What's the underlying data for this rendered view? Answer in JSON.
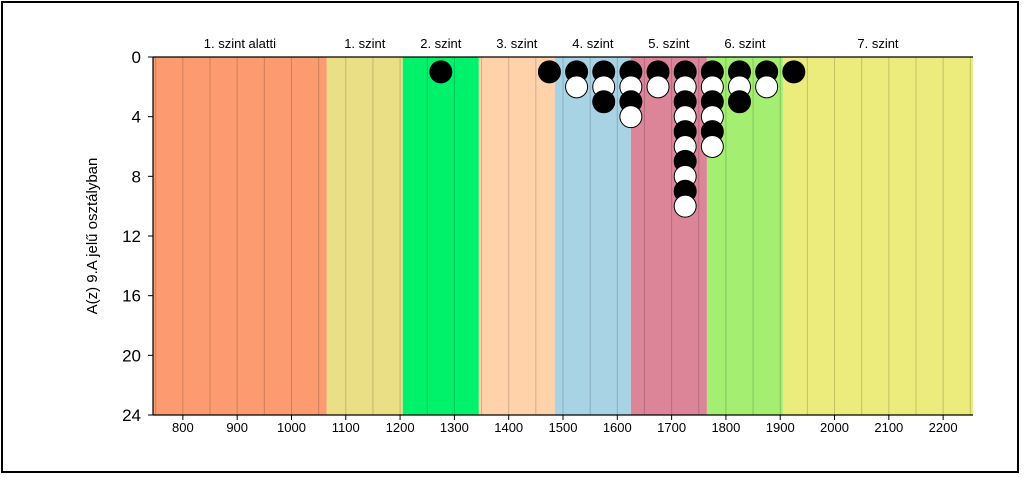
{
  "chart_data": {
    "type": "scatter",
    "title": "",
    "xlabel": "",
    "ylabel": "A(z) 9.A jelű osztályban",
    "xlim": [
      745,
      2255
    ],
    "ylim": [
      0,
      24
    ],
    "y_inverted": true,
    "x_ticks": [
      800,
      900,
      1000,
      1100,
      1200,
      1300,
      1400,
      1500,
      1600,
      1700,
      1800,
      1900,
      2000,
      2100,
      2200
    ],
    "y_ticks": [
      0,
      4,
      8,
      12,
      16,
      20,
      24
    ],
    "grid": "vertical",
    "bands": [
      {
        "label": "1. szint alatti",
        "from": 745,
        "to": 1065,
        "color": "#fb9b6f"
      },
      {
        "label": "1. szint",
        "from": 1065,
        "to": 1205,
        "color": "#eadf85"
      },
      {
        "label": "2. szint",
        "from": 1205,
        "to": 1345,
        "color": "#00f26a"
      },
      {
        "label": "3. szint",
        "from": 1345,
        "to": 1485,
        "color": "#ffd2aa"
      },
      {
        "label": "4. szint",
        "from": 1485,
        "to": 1625,
        "color": "#a8d3e5"
      },
      {
        "label": "5. szint",
        "from": 1625,
        "to": 1765,
        "color": "#dc8599"
      },
      {
        "label": "6. szint",
        "from": 1765,
        "to": 1905,
        "color": "#a4ee72"
      },
      {
        "label": "7. szint",
        "from": 1905,
        "to": 2255,
        "color": "#ecec7c"
      }
    ],
    "points": [
      {
        "x": 1275,
        "y": 1,
        "color": "black"
      },
      {
        "x": 1475,
        "y": 1,
        "color": "black"
      },
      {
        "x": 1525,
        "y": 1,
        "color": "black"
      },
      {
        "x": 1525,
        "y": 2,
        "color": "white"
      },
      {
        "x": 1575,
        "y": 1,
        "color": "black"
      },
      {
        "x": 1575,
        "y": 2,
        "color": "white"
      },
      {
        "x": 1575,
        "y": 3,
        "color": "black"
      },
      {
        "x": 1625,
        "y": 1,
        "color": "black"
      },
      {
        "x": 1625,
        "y": 2,
        "color": "white"
      },
      {
        "x": 1625,
        "y": 3,
        "color": "black"
      },
      {
        "x": 1625,
        "y": 4,
        "color": "white"
      },
      {
        "x": 1675,
        "y": 1,
        "color": "black"
      },
      {
        "x": 1675,
        "y": 2,
        "color": "white"
      },
      {
        "x": 1725,
        "y": 1,
        "color": "black"
      },
      {
        "x": 1725,
        "y": 2,
        "color": "white"
      },
      {
        "x": 1725,
        "y": 3,
        "color": "black"
      },
      {
        "x": 1725,
        "y": 4,
        "color": "white"
      },
      {
        "x": 1725,
        "y": 5,
        "color": "black"
      },
      {
        "x": 1725,
        "y": 6,
        "color": "white"
      },
      {
        "x": 1725,
        "y": 7,
        "color": "black"
      },
      {
        "x": 1725,
        "y": 8,
        "color": "white"
      },
      {
        "x": 1725,
        "y": 9,
        "color": "black"
      },
      {
        "x": 1725,
        "y": 10,
        "color": "white"
      },
      {
        "x": 1775,
        "y": 1,
        "color": "black"
      },
      {
        "x": 1775,
        "y": 2,
        "color": "white"
      },
      {
        "x": 1775,
        "y": 3,
        "color": "black"
      },
      {
        "x": 1775,
        "y": 4,
        "color": "white"
      },
      {
        "x": 1775,
        "y": 5,
        "color": "black"
      },
      {
        "x": 1775,
        "y": 6,
        "color": "white"
      },
      {
        "x": 1825,
        "y": 1,
        "color": "black"
      },
      {
        "x": 1825,
        "y": 2,
        "color": "white"
      },
      {
        "x": 1825,
        "y": 3,
        "color": "black"
      },
      {
        "x": 1875,
        "y": 1,
        "color": "black"
      },
      {
        "x": 1875,
        "y": 2,
        "color": "white"
      },
      {
        "x": 1925,
        "y": 1,
        "color": "black"
      }
    ]
  }
}
